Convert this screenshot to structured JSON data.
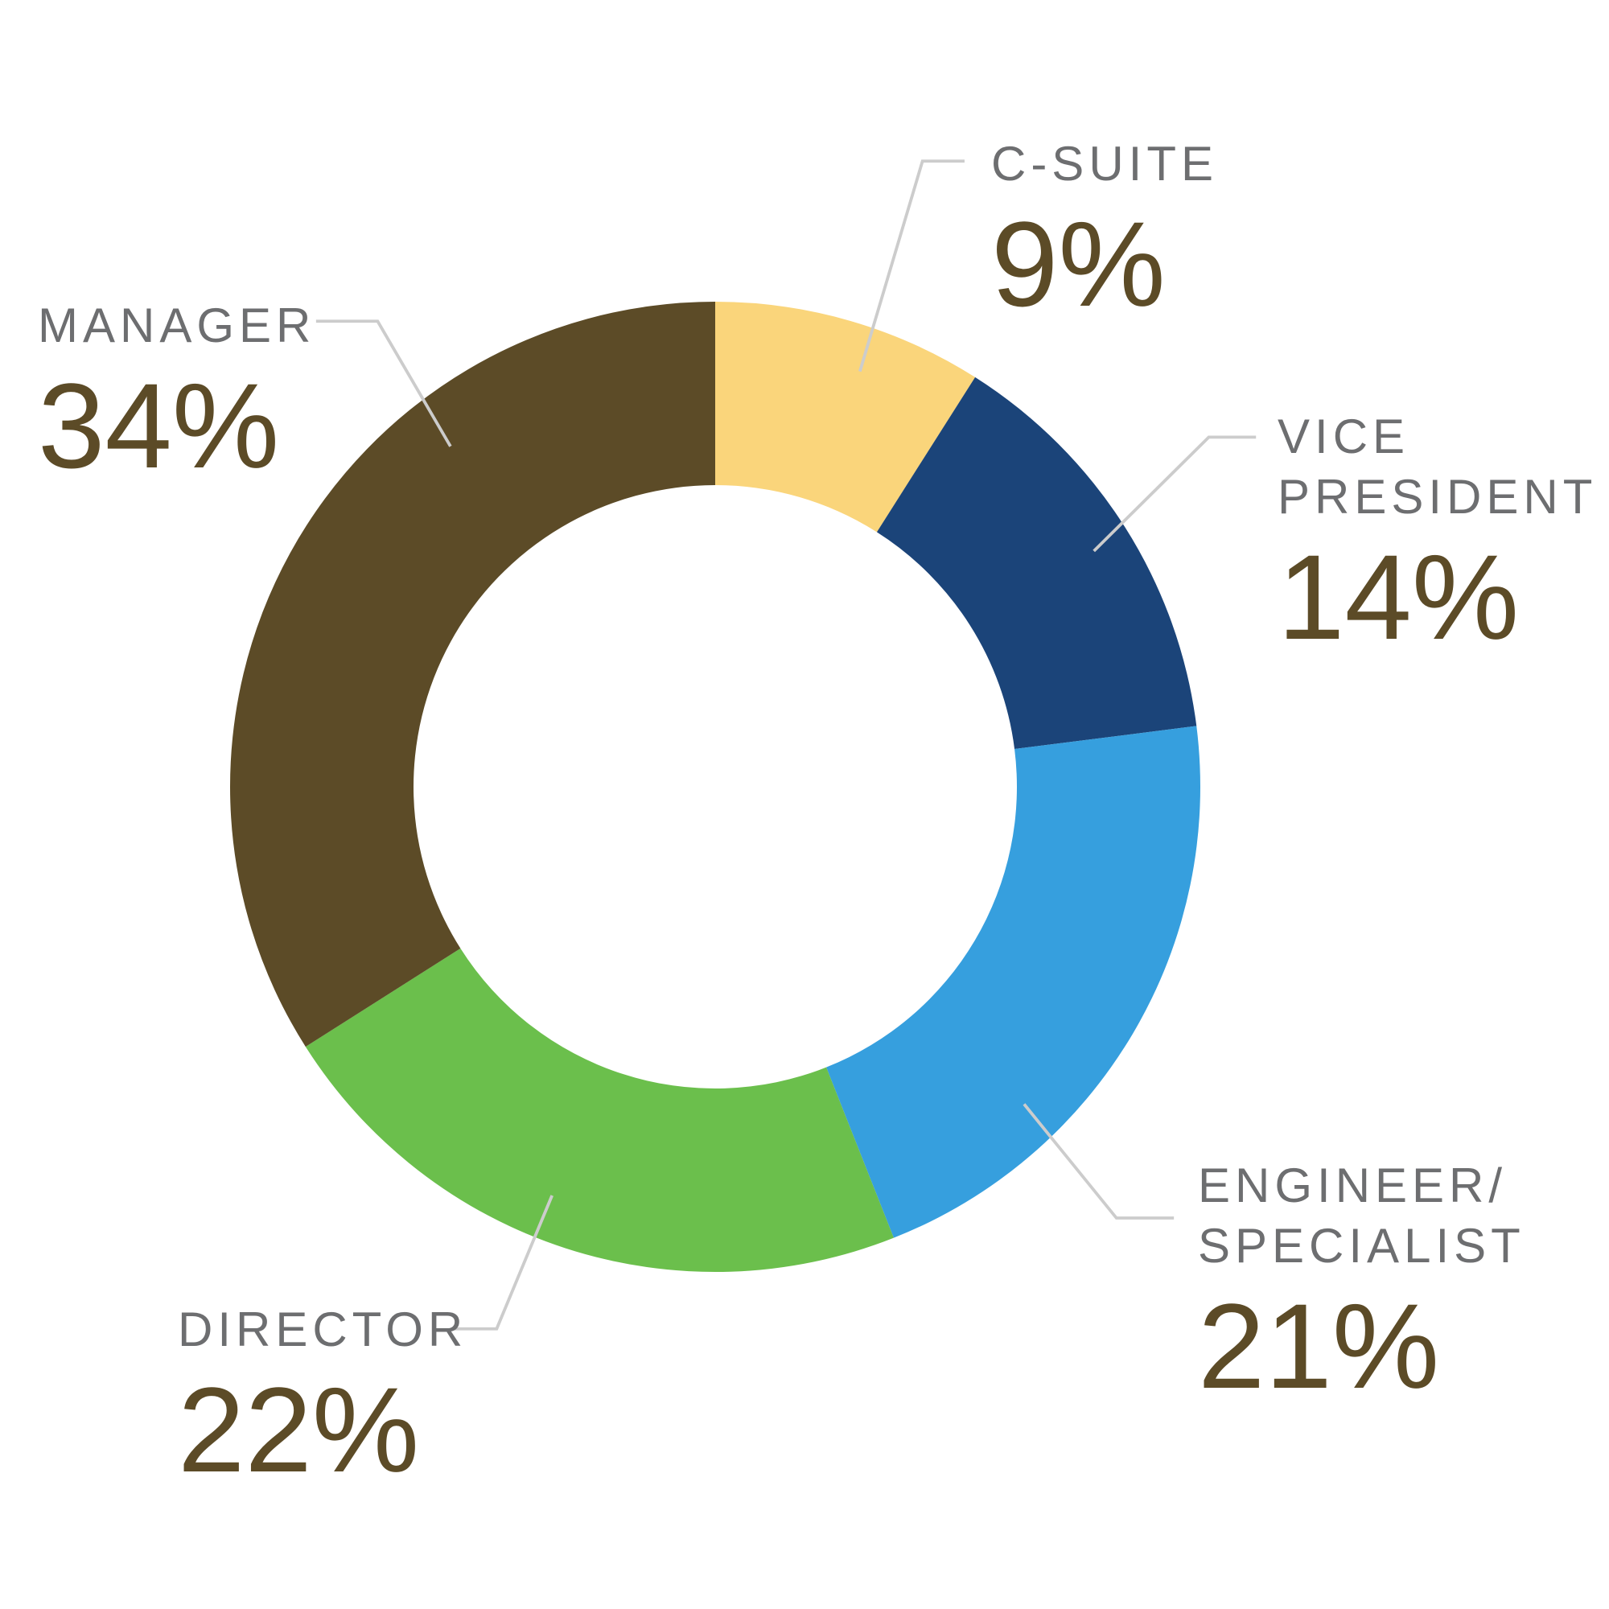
{
  "chart_data": {
    "type": "donut",
    "categories": [
      "C-SUITE",
      "VICE\nPRESIDENT",
      "ENGINEER/\nSPECIALIST",
      "DIRECTOR",
      "MANAGER"
    ],
    "values": [
      9,
      14,
      21,
      22,
      34
    ],
    "value_labels": [
      "9%",
      "14%",
      "21%",
      "22%",
      "34%"
    ],
    "colors": [
      "#fad57b",
      "#1b4479",
      "#369fde",
      "#6bbf4c",
      "#5c4b27"
    ]
  }
}
